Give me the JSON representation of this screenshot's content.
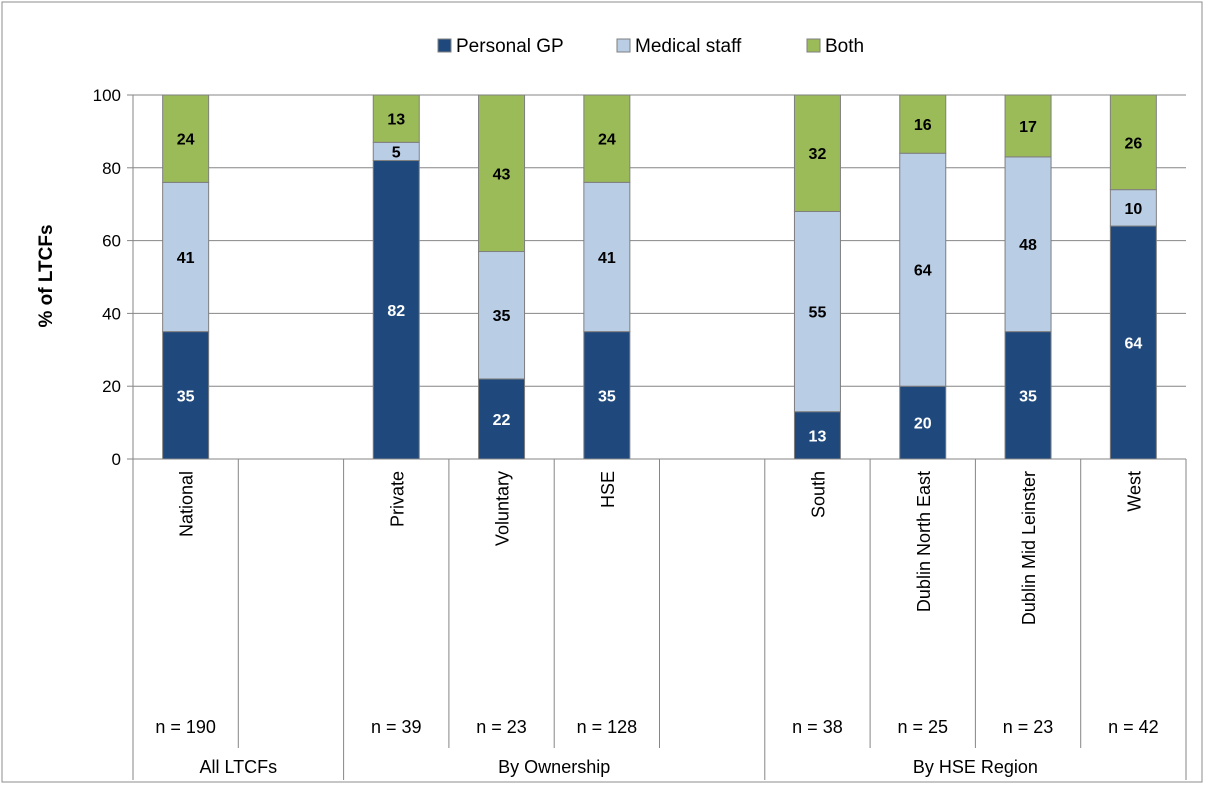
{
  "chart_data": {
    "type": "bar",
    "stacked": true,
    "title": "",
    "xlabel": "",
    "ylabel": "% of LTCFs",
    "ylim": [
      0,
      100
    ],
    "yticks": [
      0,
      20,
      40,
      60,
      80,
      100
    ],
    "grid": true,
    "legend_position": "top-center",
    "categories": [
      "National",
      "",
      "Private",
      "Voluntary",
      "HSE",
      "",
      "South",
      "Dublin North East",
      "Dublin Mid Leinster",
      "West"
    ],
    "sample_sizes": [
      "n = 190",
      "",
      "n = 39",
      "n = 23",
      "n = 128",
      "",
      "n = 38",
      "n = 25",
      "n = 23",
      "n = 42"
    ],
    "groups": [
      {
        "label": "All LTCFs",
        "start": 0,
        "end": 1
      },
      {
        "label": "By Ownership",
        "start": 2,
        "end": 5
      },
      {
        "label": "By HSE Region",
        "start": 6,
        "end": 9
      }
    ],
    "series": [
      {
        "name": "Personal GP",
        "color": "#1f497d",
        "values": [
          35,
          null,
          82,
          22,
          35,
          null,
          13,
          20,
          35,
          64
        ],
        "label_color": "#ffffff"
      },
      {
        "name": "Medical staff",
        "color": "#b9cde5",
        "values": [
          41,
          null,
          5,
          35,
          41,
          null,
          55,
          64,
          48,
          10
        ],
        "label_color": "#000000"
      },
      {
        "name": "Both",
        "color": "#9bbb59",
        "values": [
          24,
          null,
          13,
          43,
          24,
          null,
          32,
          16,
          17,
          26
        ],
        "label_color": "#000000"
      }
    ]
  }
}
